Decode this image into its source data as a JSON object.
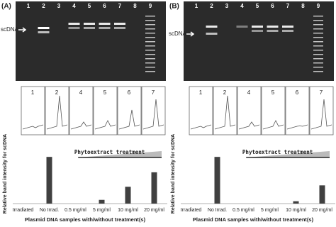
{
  "panels": [
    {
      "label": "(A)",
      "lanes": [
        "1",
        "2",
        "3",
        "4",
        "5",
        "6",
        "7",
        "8",
        "9"
      ],
      "band_label": "scDNA",
      "traces": [
        "1",
        "2",
        "4",
        "5",
        "6",
        "7"
      ]
    },
    {
      "label": "(B)",
      "lanes": [
        "1",
        "2",
        "3",
        "4",
        "5",
        "6",
        "7",
        "8",
        "9"
      ],
      "band_label": "scDNA",
      "traces": [
        "1",
        "2",
        "4",
        "5",
        "6",
        "7"
      ]
    }
  ],
  "chart_data": [
    {
      "type": "bar",
      "ylabel": "Relative band intensity for scDNA",
      "xlabel": "Plasmid DNA samples with/without treatment(s)",
      "annotation": "Phytoextract treatment",
      "categories": [
        "Irradiated",
        "No Irrad.",
        "0.5 mg/ml",
        "5 mg/ml",
        "10 mg/ml",
        "20 mg/ml"
      ],
      "values": [
        0,
        100,
        0,
        8,
        36,
        67
      ],
      "color": "#404040",
      "ylim": [
        0,
        120
      ]
    },
    {
      "type": "bar",
      "ylabel": "Relative band intensity for scDNA",
      "xlabel": "Plasmid DNA samples with/without treatment(s)",
      "annotation": "Phytoextract treatment",
      "categories": [
        "Irradiated",
        "No Irrad.",
        "0.5 mg/ml",
        "5 mg/ml",
        "10 mg/ml",
        "20 mg/ml"
      ],
      "values": [
        0,
        100,
        0,
        0,
        5,
        39
      ],
      "color": "#404040",
      "ylim": [
        0,
        120
      ]
    }
  ]
}
